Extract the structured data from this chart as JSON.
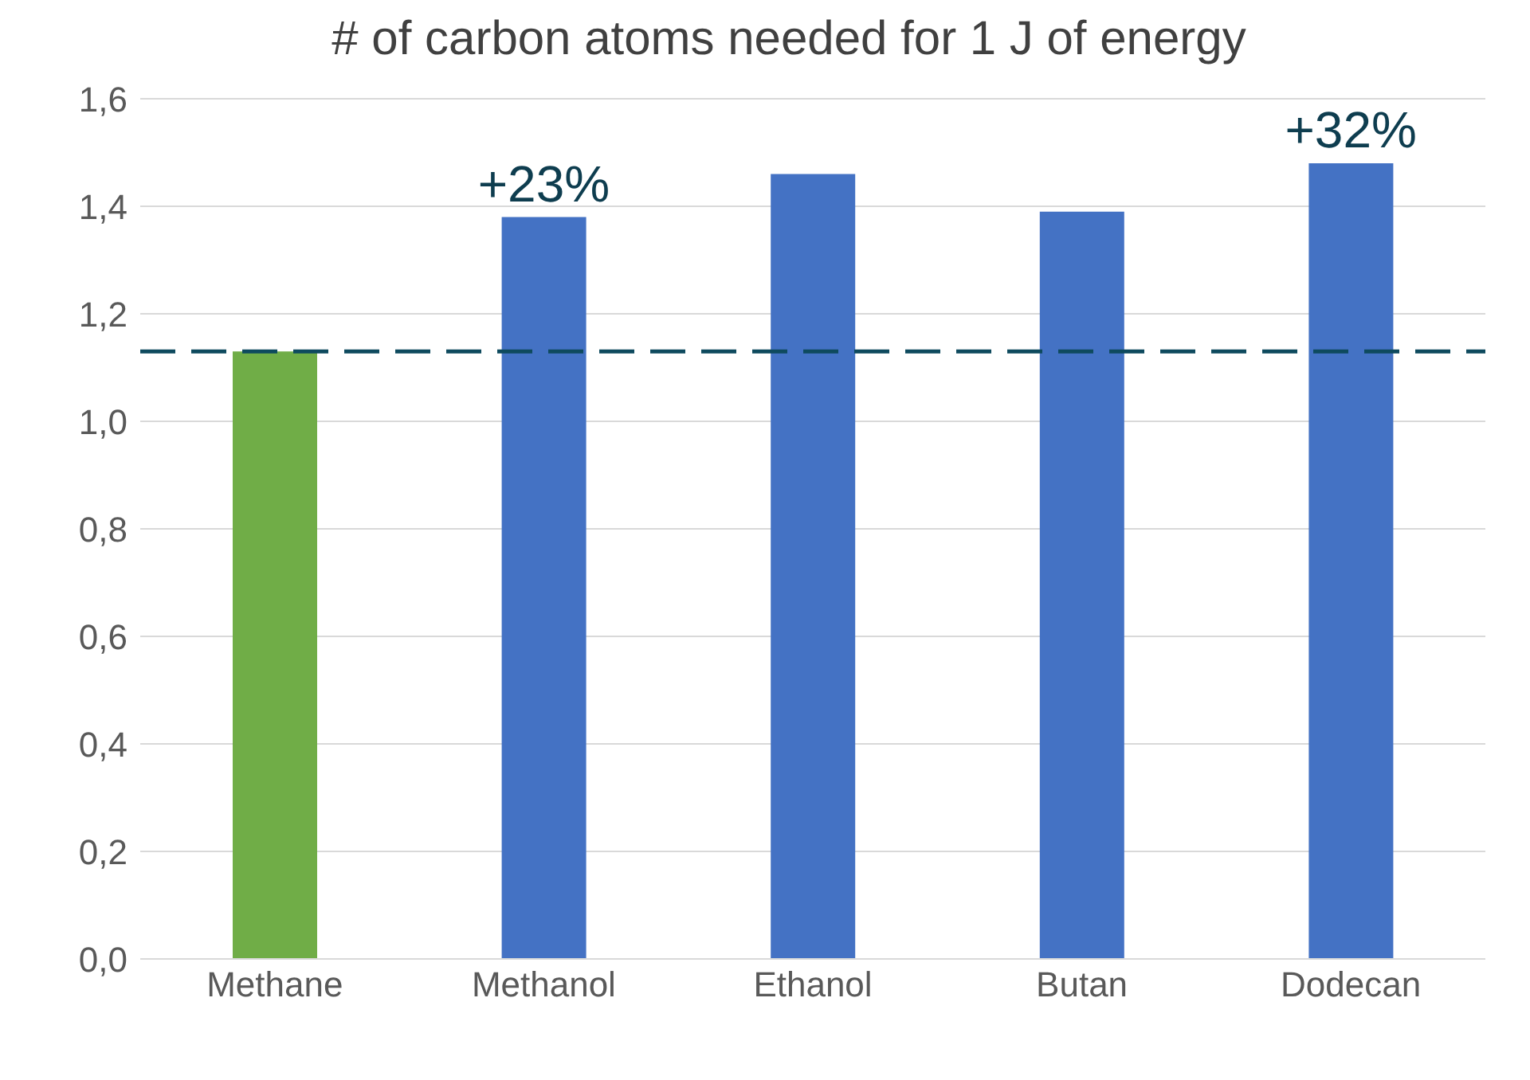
{
  "chart_data": {
    "type": "bar",
    "title": "# of carbon atoms needed for 1 J of energy",
    "categories": [
      "Methane",
      "Methanol",
      "Ethanol",
      "Butan",
      "Dodecan"
    ],
    "values": [
      1.13,
      1.38,
      1.46,
      1.39,
      1.48
    ],
    "colors": [
      "#70ad47",
      "#4472c4",
      "#4472c4",
      "#4472c4",
      "#4472c4"
    ],
    "ylim": [
      0,
      1.6
    ],
    "yticks": [
      {
        "value": 0,
        "label": "0,0"
      },
      {
        "value": 0.2,
        "label": "0,2"
      },
      {
        "value": 0.4,
        "label": "0,4"
      },
      {
        "value": 0.6,
        "label": "0,6"
      },
      {
        "value": 0.8,
        "label": "0,8"
      },
      {
        "value": 1,
        "label": "1,0"
      },
      {
        "value": 1.2,
        "label": "1,2"
      },
      {
        "value": 1.4,
        "label": "1,4"
      },
      {
        "value": 1.6,
        "label": "1,6"
      }
    ],
    "grid": "y",
    "ref_lines": [
      {
        "axis": "y",
        "value": 1.13,
        "color": "#0e4a5e",
        "line_style": "dashed"
      }
    ],
    "annotations": [
      {
        "text": "+23%",
        "x": "Methanol",
        "y": 1.38
      },
      {
        "text": "+32%",
        "x": "Dodecan",
        "y": 1.48
      }
    ]
  }
}
